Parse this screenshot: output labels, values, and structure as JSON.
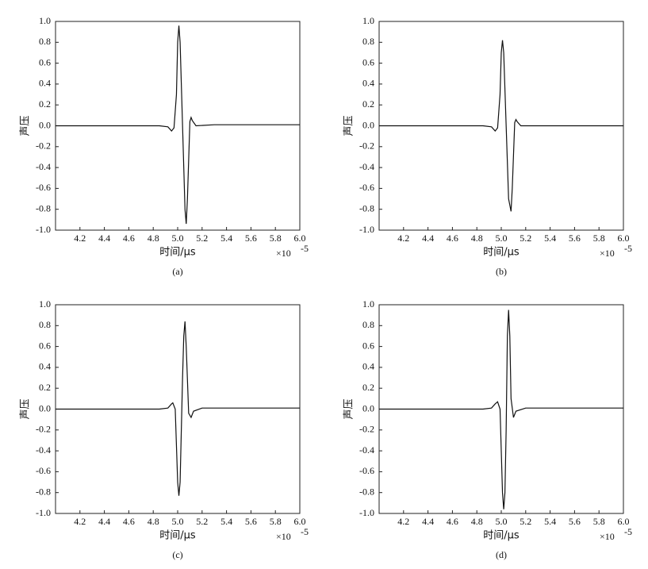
{
  "chart_data": [
    {
      "type": "line",
      "caption": "(a)",
      "xlabel": "时间/μs",
      "ylabel": "声压",
      "x_multiplier": "×10",
      "x_multiplier_exponent": "-5",
      "color": "#111111",
      "xlim": [
        4.0,
        6.0
      ],
      "ylim": [
        -1.0,
        1.0
      ],
      "xticks": [
        4.2,
        4.4,
        4.6,
        4.8,
        {
          "value": 5,
          "label": "5.0"
        },
        5.2,
        5.4,
        5.6,
        5.8,
        {
          "value": 6,
          "label": "6.0"
        }
      ],
      "yticks": [
        {
          "value": 1,
          "label": "1.0"
        },
        0.8,
        0.6,
        0.4,
        0.2,
        {
          "value": 0,
          "label": "0.0"
        },
        -0.2,
        -0.4,
        -0.6,
        -0.8,
        {
          "value": -1,
          "label": "-1.0"
        }
      ],
      "x": [
        4.0,
        4.85,
        4.92,
        4.95,
        4.97,
        4.99,
        5.0,
        5.01,
        5.02,
        5.04,
        5.06,
        5.07,
        5.08,
        5.1,
        5.11,
        5.12,
        5.15,
        5.3,
        6.0
      ],
      "values": [
        0,
        0,
        -0.01,
        -0.05,
        -0.02,
        0.3,
        0.8,
        0.96,
        0.8,
        0.0,
        -0.8,
        -0.94,
        -0.7,
        0.04,
        0.08,
        0.05,
        0.0,
        0.01,
        0.01
      ]
    },
    {
      "type": "line",
      "caption": "(b)",
      "xlabel": "时间/μs",
      "ylabel": "声压",
      "x_multiplier": "×10",
      "x_multiplier_exponent": "-5",
      "color": "#111111",
      "xlim": [
        4.0,
        6.0
      ],
      "ylim": [
        -1.0,
        1.0
      ],
      "xticks": [
        4.2,
        4.4,
        4.6,
        4.8,
        {
          "value": 5,
          "label": "5.0"
        },
        5.2,
        5.4,
        5.6,
        5.8,
        {
          "value": 6,
          "label": "6.0"
        }
      ],
      "yticks": [
        {
          "value": 1,
          "label": "1.0"
        },
        0.8,
        0.6,
        0.4,
        0.2,
        {
          "value": 0,
          "label": "0.0"
        },
        -0.2,
        -0.4,
        -0.6,
        -0.8,
        {
          "value": -1,
          "label": "-1.0"
        }
      ],
      "x": [
        4.0,
        4.85,
        4.92,
        4.95,
        4.97,
        4.99,
        5.0,
        5.01,
        5.02,
        5.04,
        5.06,
        5.08,
        5.09,
        5.11,
        5.12,
        5.13,
        5.16,
        6.0
      ],
      "values": [
        0,
        0,
        -0.01,
        -0.05,
        -0.02,
        0.3,
        0.7,
        0.82,
        0.7,
        0.0,
        -0.7,
        -0.82,
        -0.6,
        0.03,
        0.06,
        0.04,
        0.0,
        0.0
      ]
    },
    {
      "type": "line",
      "caption": "(c)",
      "xlabel": "时间/μs",
      "ylabel": "声压",
      "x_multiplier": "×10",
      "x_multiplier_exponent": "-5",
      "color": "#111111",
      "xlim": [
        4.0,
        6.0
      ],
      "ylim": [
        -1.0,
        1.0
      ],
      "xticks": [
        4.2,
        4.4,
        4.6,
        4.8,
        {
          "value": 5,
          "label": "5.0"
        },
        5.2,
        5.4,
        5.6,
        5.8,
        {
          "value": 6,
          "label": "6.0"
        }
      ],
      "yticks": [
        {
          "value": 1,
          "label": "1.0"
        },
        0.8,
        0.6,
        0.4,
        0.2,
        {
          "value": 0,
          "label": "0.0"
        },
        -0.2,
        -0.4,
        -0.6,
        -0.8,
        {
          "value": -1,
          "label": "-1.0"
        }
      ],
      "x": [
        4.0,
        4.85,
        4.92,
        4.95,
        4.96,
        4.98,
        5.0,
        5.01,
        5.02,
        5.04,
        5.05,
        5.06,
        5.07,
        5.09,
        5.11,
        5.13,
        5.2,
        6.0
      ],
      "values": [
        0,
        0,
        0.01,
        0.05,
        0.06,
        0.0,
        -0.7,
        -0.83,
        -0.7,
        0.3,
        0.7,
        0.84,
        0.6,
        -0.04,
        -0.08,
        -0.02,
        0.01,
        0.01
      ]
    },
    {
      "type": "line",
      "caption": "(d)",
      "xlabel": "时间/μs",
      "ylabel": "声压",
      "x_multiplier": "×10",
      "x_multiplier_exponent": "-5",
      "color": "#111111",
      "xlim": [
        4.0,
        6.0
      ],
      "ylim": [
        -1.0,
        1.0
      ],
      "xticks": [
        4.2,
        4.4,
        4.6,
        4.8,
        {
          "value": 5,
          "label": "5.0"
        },
        5.2,
        5.4,
        5.6,
        5.8,
        {
          "value": 6,
          "label": "6.0"
        }
      ],
      "yticks": [
        {
          "value": 1,
          "label": "1.0"
        },
        0.8,
        0.6,
        0.4,
        0.2,
        {
          "value": 0,
          "label": "0.0"
        },
        -0.2,
        -0.4,
        -0.6,
        -0.8,
        {
          "value": -1,
          "label": "-1.0"
        }
      ],
      "x": [
        4.0,
        4.85,
        4.92,
        4.95,
        4.97,
        4.99,
        5.01,
        5.02,
        5.03,
        5.04,
        5.05,
        5.06,
        5.07,
        5.08,
        5.1,
        5.12,
        5.2,
        6.0
      ],
      "values": [
        0,
        0,
        0.01,
        0.05,
        0.07,
        0.0,
        -0.8,
        -0.96,
        -0.8,
        -0.2,
        0.7,
        0.95,
        0.7,
        0.1,
        -0.08,
        -0.02,
        0.01,
        0.01
      ]
    }
  ]
}
